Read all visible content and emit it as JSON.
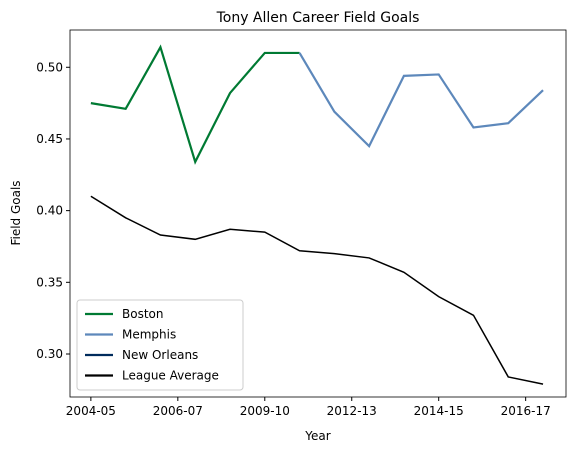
{
  "chart_data": {
    "type": "line",
    "title": "Tony Allen  Career Field Goals",
    "xlabel": "Year",
    "ylabel": "Field Goals",
    "x": [
      0,
      1,
      2,
      3,
      4,
      5,
      6,
      7,
      8,
      9,
      10,
      11,
      12,
      13
    ],
    "xlim": [
      -0.6,
      13.66
    ],
    "xticks": [
      {
        "value": 0,
        "label": "2004-05"
      },
      {
        "value": 2.5,
        "label": "2006-07"
      },
      {
        "value": 5,
        "label": "2009-10"
      },
      {
        "value": 7.5,
        "label": "2012-13"
      },
      {
        "value": 10,
        "label": "2014-15"
      },
      {
        "value": 12.5,
        "label": "2016-17"
      }
    ],
    "ylim": [
      0.27,
      0.526
    ],
    "yticks": [
      {
        "value": 0.3,
        "label": "0.30"
      },
      {
        "value": 0.35,
        "label": "0.35"
      },
      {
        "value": 0.4,
        "label": "0.40"
      },
      {
        "value": 0.45,
        "label": "0.45"
      },
      {
        "value": 0.5,
        "label": "0.50"
      }
    ],
    "legend": "lower left",
    "series": [
      {
        "name": "Boston",
        "color": "#007a33",
        "values": [
          0.475,
          0.471,
          0.514,
          0.434,
          0.482,
          0.51,
          0.51,
          null,
          null,
          null,
          null,
          null,
          null,
          null
        ]
      },
      {
        "name": "Memphis",
        "color": "#5d88bb",
        "values": [
          null,
          null,
          null,
          null,
          null,
          null,
          0.51,
          0.469,
          0.445,
          0.494,
          0.495,
          0.458,
          0.461,
          0.484
        ]
      },
      {
        "name": "New Orleans",
        "color": "#002b5c",
        "values": [
          null,
          null,
          null,
          null,
          null,
          null,
          null,
          null,
          null,
          null,
          null,
          null,
          null,
          null
        ]
      },
      {
        "name": "League Average",
        "color": "#000000",
        "values": [
          0.41,
          0.395,
          0.383,
          0.38,
          0.387,
          0.385,
          0.372,
          0.37,
          0.367,
          0.357,
          0.34,
          0.327,
          0.284,
          0.279
        ]
      }
    ]
  }
}
